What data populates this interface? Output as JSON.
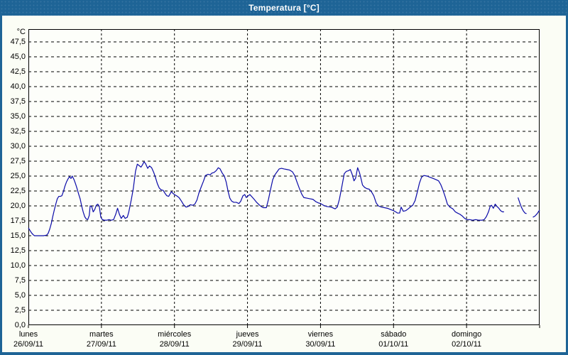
{
  "window": {
    "title": "Temperatura [°C]"
  },
  "colors": {
    "frame": "#1e6496",
    "title_text": "#ffffff",
    "background": "#fbfdf5",
    "plot_background": "#fdfefa",
    "line": "#0a0aa8",
    "grid": "#000000",
    "text": "#000000"
  },
  "chart_data": {
    "type": "line",
    "title": "Temperatura [°C]",
    "y_unit_label": "°C",
    "grid": "dashed",
    "legend": "none",
    "ylim": [
      0,
      49.64
    ],
    "y_tick_top": 47.5,
    "y_tick_step": 2.5,
    "y_tick_labels": [
      "47,5",
      "45,0",
      "42,5",
      "40,0",
      "37,5",
      "35,0",
      "32,5",
      "30,0",
      "27,5",
      "25,0",
      "22,5",
      "20,0",
      "17,5",
      "15,0",
      "12,5",
      "10,0",
      "7,5",
      "5,0",
      "2,5",
      "0,0"
    ],
    "xlim_hours": [
      0,
      168
    ],
    "x_ticks": [
      {
        "day": "lunes",
        "date": "26/09/11"
      },
      {
        "day": "martes",
        "date": "27/09/11"
      },
      {
        "day": "miércoles",
        "date": "28/09/11"
      },
      {
        "day": "jueves",
        "date": "29/09/11"
      },
      {
        "day": "viernes",
        "date": "30/09/11"
      },
      {
        "day": "sábado",
        "date": "01/10/11"
      },
      {
        "day": "domingo",
        "date": "02/10/11"
      }
    ],
    "series": [
      {
        "name": "Temperatura",
        "unit": "°C",
        "color": "#0a0aa8",
        "segments_hours_temp": [
          [
            [
              0,
              16.3
            ],
            [
              0.5,
              15.9
            ],
            [
              1,
              15.5
            ],
            [
              1.5,
              15.2
            ],
            [
              2,
              15.0
            ],
            [
              3,
              15.0
            ],
            [
              4,
              15.0
            ],
            [
              5,
              15.0
            ],
            [
              6,
              15.1
            ],
            [
              6.5,
              15.4
            ],
            [
              7,
              16.1
            ],
            [
              7.5,
              17.0
            ],
            [
              8,
              18.2
            ],
            [
              8.5,
              19.3
            ],
            [
              9,
              20.3
            ],
            [
              9.5,
              21.2
            ],
            [
              10,
              21.6
            ],
            [
              10.5,
              21.6
            ],
            [
              11,
              21.7
            ],
            [
              11.5,
              22.4
            ],
            [
              12,
              23.3
            ],
            [
              12.5,
              24.0
            ],
            [
              13,
              24.5
            ],
            [
              13.5,
              24.9
            ],
            [
              14,
              24.6
            ],
            [
              14.4,
              25.0
            ],
            [
              15,
              24.4
            ],
            [
              15.5,
              23.7
            ],
            [
              16,
              22.9
            ],
            [
              16.5,
              22.0
            ],
            [
              17,
              21.2
            ],
            [
              17.5,
              20.0
            ],
            [
              18,
              19.0
            ],
            [
              18.5,
              18.2
            ],
            [
              19,
              17.8
            ],
            [
              19.5,
              17.7
            ],
            [
              20,
              18.4
            ],
            [
              20.3,
              20.0
            ],
            [
              20.8,
              19.9
            ],
            [
              21.3,
              19.0
            ],
            [
              21.8,
              19.4
            ],
            [
              22.3,
              20.1
            ],
            [
              22.8,
              20.3
            ],
            [
              23.3,
              19.9
            ],
            [
              23.8,
              18.1
            ],
            [
              24.3,
              17.7
            ],
            [
              25,
              17.6
            ],
            [
              25.7,
              17.6
            ],
            [
              26.5,
              17.7
            ],
            [
              27.2,
              17.6
            ],
            [
              28,
              17.7
            ],
            [
              28.7,
              18.6
            ],
            [
              29.3,
              19.6
            ],
            [
              29.9,
              18.6
            ],
            [
              30.5,
              17.9
            ],
            [
              31.2,
              18.4
            ],
            [
              31.8,
              17.9
            ],
            [
              32.5,
              18.1
            ],
            [
              33,
              19.0
            ],
            [
              33.8,
              21.0
            ],
            [
              34.5,
              23.0
            ],
            [
              35.2,
              25.8
            ],
            [
              35.8,
              27.0
            ],
            [
              36.3,
              26.8
            ],
            [
              37,
              26.5
            ],
            [
              37.5,
              26.9
            ],
            [
              38,
              27.4
            ],
            [
              38.5,
              27.1
            ],
            [
              39.2,
              26.3
            ],
            [
              39.8,
              26.7
            ],
            [
              40.5,
              26.4
            ],
            [
              41.2,
              25.6
            ],
            [
              41.8,
              24.7
            ],
            [
              42.4,
              23.7
            ],
            [
              43,
              23.0
            ],
            [
              43.6,
              22.7
            ],
            [
              44.3,
              22.6
            ],
            [
              44.9,
              22.1
            ],
            [
              45.5,
              21.7
            ],
            [
              46.1,
              21.6
            ],
            [
              47,
              22.4
            ],
            [
              47.5,
              22.1
            ],
            [
              48,
              21.9
            ],
            [
              48.7,
              21.7
            ],
            [
              49.5,
              21.4
            ],
            [
              50.3,
              20.8
            ],
            [
              51,
              20.2
            ],
            [
              51.8,
              19.8
            ],
            [
              52.5,
              19.9
            ],
            [
              53.2,
              20.2
            ],
            [
              54,
              20.1
            ],
            [
              54.7,
              20.3
            ],
            [
              55.4,
              21.0
            ],
            [
              56,
              22.1
            ],
            [
              56.8,
              23.2
            ],
            [
              57.5,
              24.1
            ],
            [
              58.2,
              25.1
            ],
            [
              59,
              25.3
            ],
            [
              59.7,
              25.2
            ],
            [
              60.3,
              25.5
            ],
            [
              61,
              25.6
            ],
            [
              61.7,
              25.9
            ],
            [
              62.4,
              26.4
            ],
            [
              63,
              26.2
            ],
            [
              63.7,
              25.5
            ],
            [
              64.4,
              25.0
            ],
            [
              65,
              24.0
            ],
            [
              65.6,
              22.5
            ],
            [
              66.2,
              21.3
            ],
            [
              66.8,
              20.8
            ],
            [
              67.5,
              20.6
            ],
            [
              68.3,
              20.6
            ],
            [
              69.2,
              20.4
            ],
            [
              69.8,
              20.8
            ],
            [
              70.5,
              21.7
            ],
            [
              71.1,
              21.9
            ],
            [
              71.6,
              21.4
            ],
            [
              72,
              21.6
            ],
            [
              72.8,
              21.9
            ],
            [
              73.5,
              21.5
            ],
            [
              74.2,
              21.1
            ],
            [
              75,
              20.6
            ],
            [
              75.8,
              20.2
            ],
            [
              76.5,
              19.9
            ],
            [
              77.2,
              19.7
            ],
            [
              78.2,
              19.7
            ],
            [
              78.9,
              21.1
            ],
            [
              79.6,
              22.8
            ],
            [
              80.3,
              24.4
            ],
            [
              81,
              25.2
            ],
            [
              81.7,
              25.7
            ],
            [
              82.4,
              26.2
            ],
            [
              83.2,
              26.3
            ],
            [
              84,
              26.2
            ],
            [
              85,
              26.1
            ],
            [
              85.9,
              26.0
            ],
            [
              86.8,
              25.7
            ],
            [
              87.5,
              25.1
            ],
            [
              88.2,
              24.1
            ],
            [
              89,
              23.0
            ],
            [
              89.8,
              22.0
            ],
            [
              90.5,
              21.4
            ],
            [
              91.5,
              21.3
            ],
            [
              92.5,
              21.2
            ],
            [
              93.5,
              21.1
            ],
            [
              94.5,
              20.7
            ],
            [
              95.3,
              20.5
            ],
            [
              96,
              20.4
            ],
            [
              97,
              20.1
            ],
            [
              98,
              19.9
            ],
            [
              99.5,
              19.8
            ],
            [
              100.8,
              19.5
            ],
            [
              101.5,
              19.8
            ],
            [
              102.2,
              21.1
            ],
            [
              103,
              23.2
            ],
            [
              103.8,
              25.4
            ],
            [
              104.5,
              25.8
            ],
            [
              105.2,
              25.9
            ],
            [
              105.8,
              26.1
            ],
            [
              106.4,
              25.3
            ],
            [
              107,
              24.2
            ],
            [
              107.5,
              24.6
            ],
            [
              108.2,
              26.4
            ],
            [
              108.8,
              25.6
            ],
            [
              109.3,
              24.6
            ],
            [
              109.8,
              23.5
            ],
            [
              110.5,
              23.1
            ],
            [
              111.2,
              22.9
            ],
            [
              112,
              22.8
            ],
            [
              112.7,
              22.4
            ],
            [
              113.5,
              21.7
            ],
            [
              114.3,
              20.5
            ],
            [
              115,
              20.0
            ],
            [
              116,
              19.8
            ],
            [
              117,
              19.7
            ],
            [
              118,
              19.6
            ],
            [
              119,
              19.4
            ],
            [
              120,
              19.2
            ],
            [
              120.7,
              19.0
            ],
            [
              121.3,
              18.8
            ],
            [
              122,
              18.8
            ],
            [
              122.5,
              19.8
            ],
            [
              123.2,
              19.1
            ],
            [
              124,
              19.2
            ],
            [
              124.8,
              19.5
            ],
            [
              125.5,
              19.8
            ],
            [
              126.3,
              20.1
            ],
            [
              127.1,
              20.9
            ],
            [
              127.8,
              22.3
            ],
            [
              128.5,
              23.8
            ],
            [
              129.2,
              24.8
            ],
            [
              130,
              25.1
            ],
            [
              131,
              25.0
            ],
            [
              132,
              24.8
            ],
            [
              133,
              24.6
            ],
            [
              134,
              24.4
            ],
            [
              134.8,
              24.2
            ],
            [
              135.5,
              23.6
            ],
            [
              136.2,
              22.7
            ],
            [
              137,
              21.5
            ],
            [
              137.7,
              20.3
            ],
            [
              138.5,
              19.8
            ],
            [
              139.5,
              19.5
            ],
            [
              140.3,
              19.0
            ],
            [
              141,
              18.8
            ],
            [
              141.8,
              18.6
            ],
            [
              142.6,
              18.3
            ],
            [
              143.4,
              17.9
            ],
            [
              144.1,
              17.7
            ],
            [
              145,
              17.7
            ],
            [
              146,
              17.6
            ],
            [
              147,
              17.7
            ],
            [
              148,
              17.6
            ],
            [
              149,
              17.6
            ],
            [
              149.8,
              17.7
            ],
            [
              150.5,
              18.2
            ],
            [
              151.2,
              19.0
            ],
            [
              151.8,
              20.0
            ],
            [
              152.2,
              20.1
            ],
            [
              152.8,
              19.6
            ],
            [
              153.4,
              20.3
            ],
            [
              154,
              19.9
            ],
            [
              154.6,
              19.6
            ],
            [
              155.2,
              19.2
            ],
            [
              155.8,
              19.0
            ],
            [
              156.3,
              19.0
            ]
          ],
          [
            [
              160.9,
              21.4
            ],
            [
              161.5,
              20.5
            ],
            [
              162,
              19.8
            ],
            [
              162.6,
              19.2
            ],
            [
              163.2,
              18.8
            ],
            [
              163.7,
              18.7
            ]
          ],
          [
            [
              165.8,
              18.1
            ],
            [
              166.5,
              18.3
            ],
            [
              167.2,
              18.7
            ],
            [
              168,
              19.3
            ]
          ]
        ]
      }
    ]
  }
}
